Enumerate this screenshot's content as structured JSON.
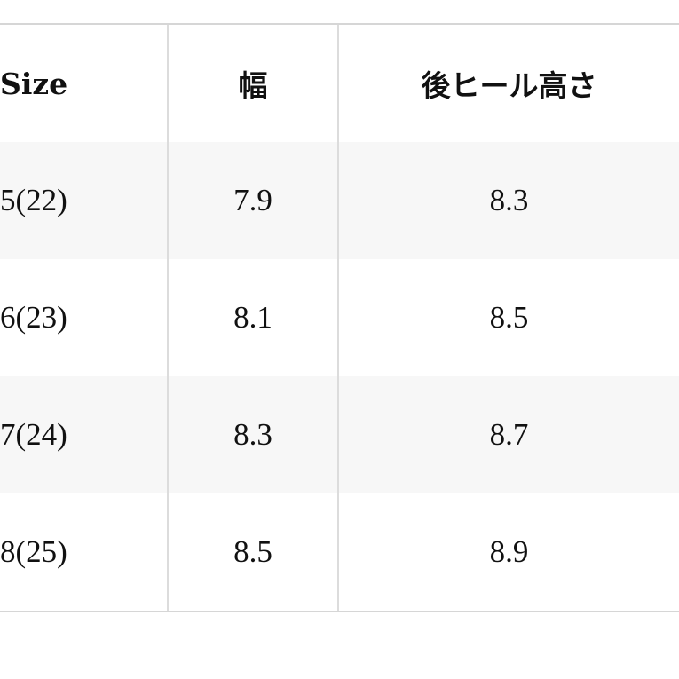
{
  "table": {
    "headers": [
      "Size",
      "幅",
      "後ヒール高さ"
    ],
    "rows": [
      [
        "5(22)",
        "7.9",
        "8.3"
      ],
      [
        "6(23)",
        "8.1",
        "8.5"
      ],
      [
        "7(24)",
        "8.3",
        "8.7"
      ],
      [
        "8(25)",
        "8.5",
        "8.9"
      ]
    ],
    "stripe_color": "#f7f7f7",
    "border_color": "#d6d6d6"
  }
}
